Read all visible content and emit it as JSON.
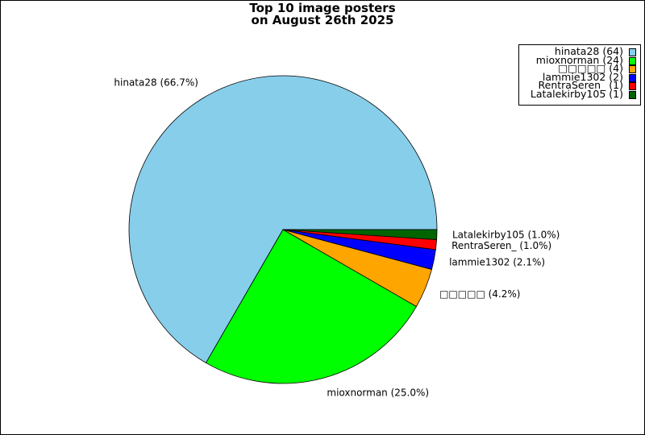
{
  "title_lines": [
    "Top 10 image posters",
    "on August 26th 2025"
  ],
  "chart_data": {
    "type": "pie",
    "title": "Top 10 image posters on August 26th 2025",
    "legend_position": "top-right",
    "slices": [
      {
        "name": "hinata28",
        "count": 64,
        "percent": 66.7,
        "color": "#87ceeb",
        "legend": "hinata28 (64)",
        "label": "hinata28 (66.7%)"
      },
      {
        "name": "mioxnorman",
        "count": 24,
        "percent": 25.0,
        "color": "#00ff00",
        "legend": "mioxnorman (24)",
        "label": "mioxnorman (25.0%)"
      },
      {
        "name": "□□□□□",
        "count": 4,
        "percent": 4.2,
        "color": "#ffa500",
        "legend": "□□□□□ (4)",
        "label": "□□□□□ (4.2%)"
      },
      {
        "name": "lammie1302",
        "count": 2,
        "percent": 2.1,
        "color": "#0000ff",
        "legend": "lammie1302 (2)",
        "label": "lammie1302 (2.1%)"
      },
      {
        "name": "RentraSeren_",
        "count": 1,
        "percent": 1.0,
        "color": "#ff0000",
        "legend": "RentraSeren_ (1)",
        "label": "RentraSeren_ (1.0%)"
      },
      {
        "name": "Latalekirby105",
        "count": 1,
        "percent": 1.0,
        "color": "#006400",
        "legend": "Latalekirby105 (1)",
        "label": "Latalekirby105 (1.0%)"
      }
    ]
  }
}
